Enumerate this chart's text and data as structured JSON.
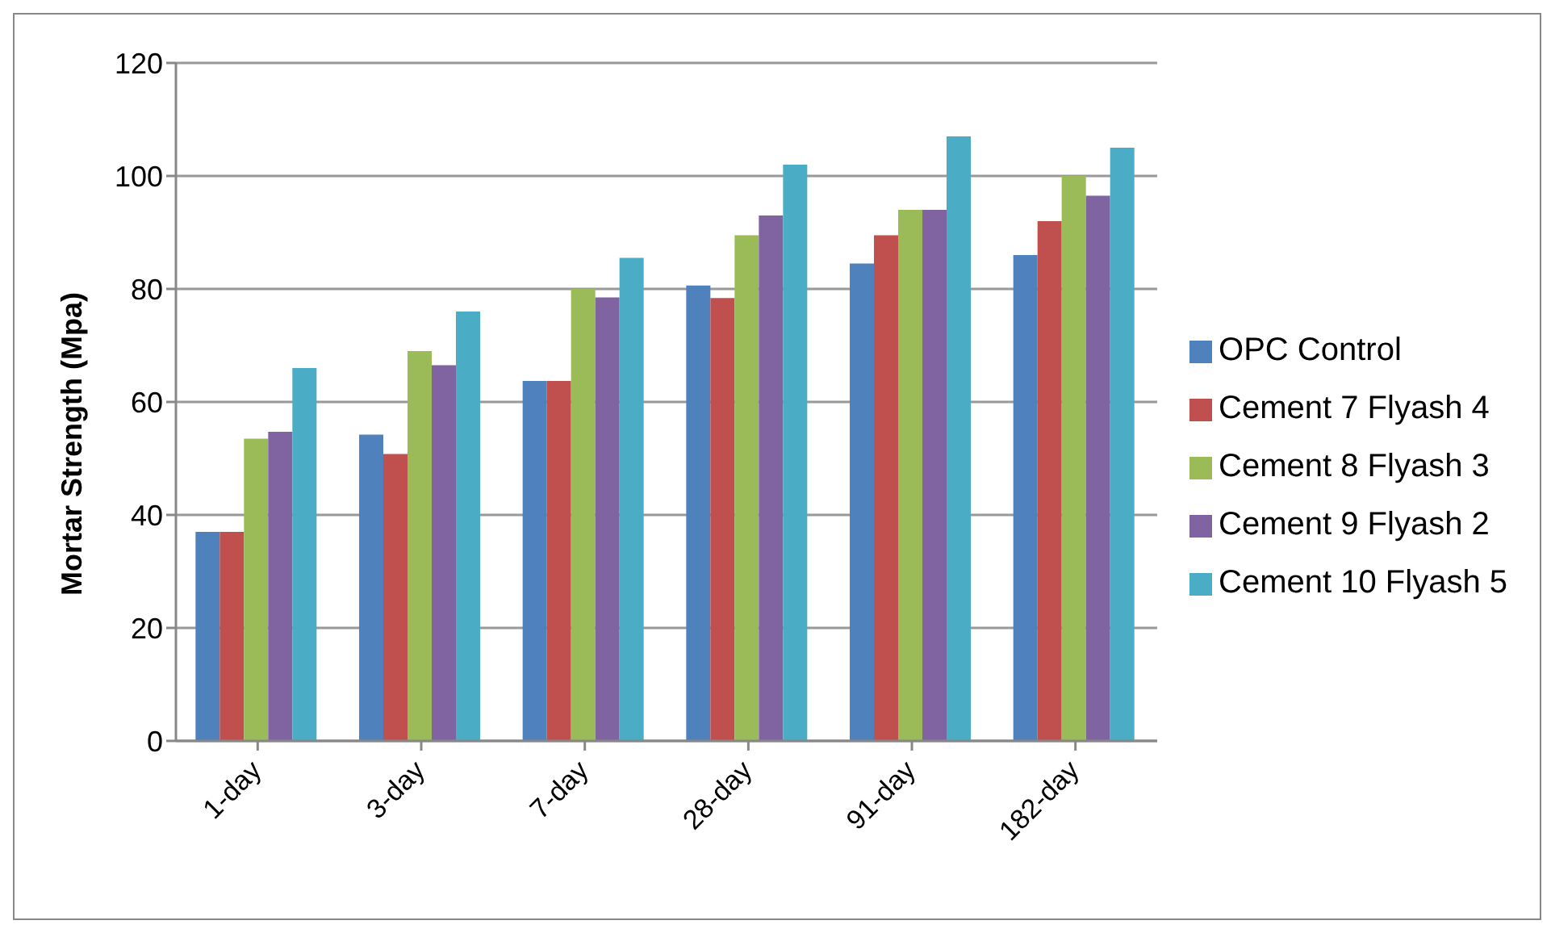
{
  "chart_data": {
    "type": "bar",
    "ylabel": "Mortar Strength (Mpa)",
    "categories": [
      "1-day",
      "3-day",
      "7-day",
      "28-day",
      "91-day",
      "182-day"
    ],
    "series": [
      {
        "name": "OPC Control",
        "color": "#4f81bd",
        "values": [
          37,
          54.2,
          63.7,
          80.6,
          84.5,
          86
        ]
      },
      {
        "name": "Cement 7 Flyash  4",
        "color": "#c0504d",
        "values": [
          37,
          50.8,
          63.7,
          78.4,
          89.5,
          92
        ]
      },
      {
        "name": "Cement 8 Flyash  3",
        "color": "#9bbb59",
        "values": [
          53.5,
          69,
          80,
          89.5,
          94,
          100
        ]
      },
      {
        "name": "Cement 9 Flyash  2",
        "color": "#8064a2",
        "values": [
          54.7,
          66.5,
          78.5,
          93,
          94,
          96.5
        ]
      },
      {
        "name": "Cement 10 Flyash  5",
        "color": "#4bacc6",
        "values": [
          66,
          76,
          85.5,
          102,
          107,
          105
        ]
      }
    ],
    "ylim": [
      0,
      120
    ],
    "yticks": [
      0,
      20,
      40,
      60,
      80,
      100,
      120
    ],
    "grid": "y",
    "legend": "right"
  }
}
